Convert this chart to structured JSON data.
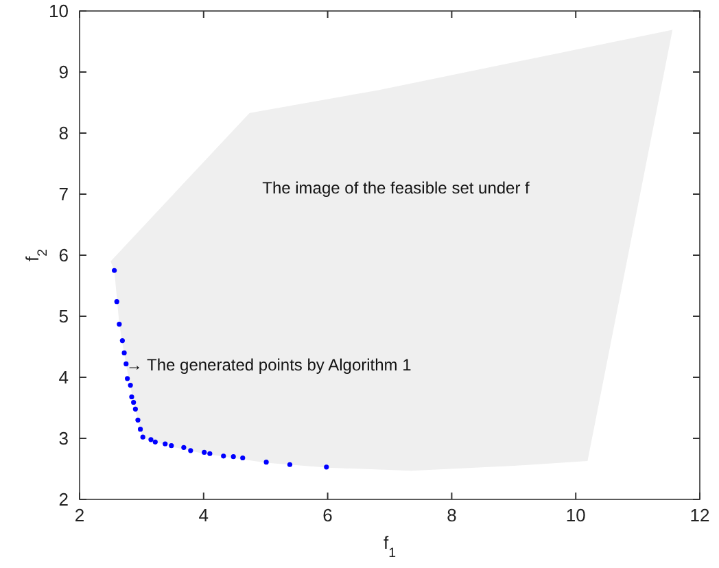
{
  "chart_data": {
    "type": "scatter",
    "xlabel": "f$_{1}$",
    "ylabel": "f$_{2}$",
    "xlim": [
      2,
      12
    ],
    "ylim": [
      2,
      10
    ],
    "xticks": [
      2,
      4,
      6,
      8,
      10,
      12
    ],
    "yticks": [
      2,
      3,
      4,
      5,
      6,
      7,
      8,
      9,
      10
    ],
    "grid": false,
    "series": [
      {
        "type": "area",
        "color": "#efefef",
        "x": [
          2.5,
          4.74,
          6.8,
          11.56,
          10.19,
          9,
          7.35,
          6,
          5,
          4,
          3.5,
          3.02,
          2.9,
          2.75,
          2.64,
          2.56
        ],
        "values": [
          5.9,
          8.33,
          8.7,
          9.69,
          2.63,
          2.55,
          2.47,
          2.52,
          2.6,
          2.75,
          2.86,
          3.0,
          3.45,
          4.2,
          4.87,
          5.75
        ]
      },
      {
        "marker": "circle",
        "color": "#0000ff",
        "x": [
          2.56,
          2.6,
          2.64,
          2.69,
          2.72,
          2.75,
          2.77,
          2.82,
          2.84,
          2.87,
          2.9,
          2.94,
          2.98,
          3.02,
          3.15,
          3.22,
          3.38,
          3.48,
          3.68,
          3.79,
          4.01,
          4.1,
          4.32,
          4.48,
          4.63,
          5.01,
          5.39,
          5.98
        ],
        "values": [
          5.75,
          5.24,
          4.87,
          4.6,
          4.4,
          4.22,
          3.98,
          3.87,
          3.68,
          3.59,
          3.48,
          3.3,
          3.15,
          3.02,
          2.98,
          2.94,
          2.91,
          2.88,
          2.85,
          2.8,
          2.77,
          2.75,
          2.71,
          2.7,
          2.68,
          2.61,
          2.57,
          2.53
        ]
      }
    ],
    "annotations": [
      "The image of the feasible set under f",
      {
        "text": "→ The generated points by Algorithm 1",
        "x": 2.75,
        "y": 4.2
      }
    ]
  }
}
